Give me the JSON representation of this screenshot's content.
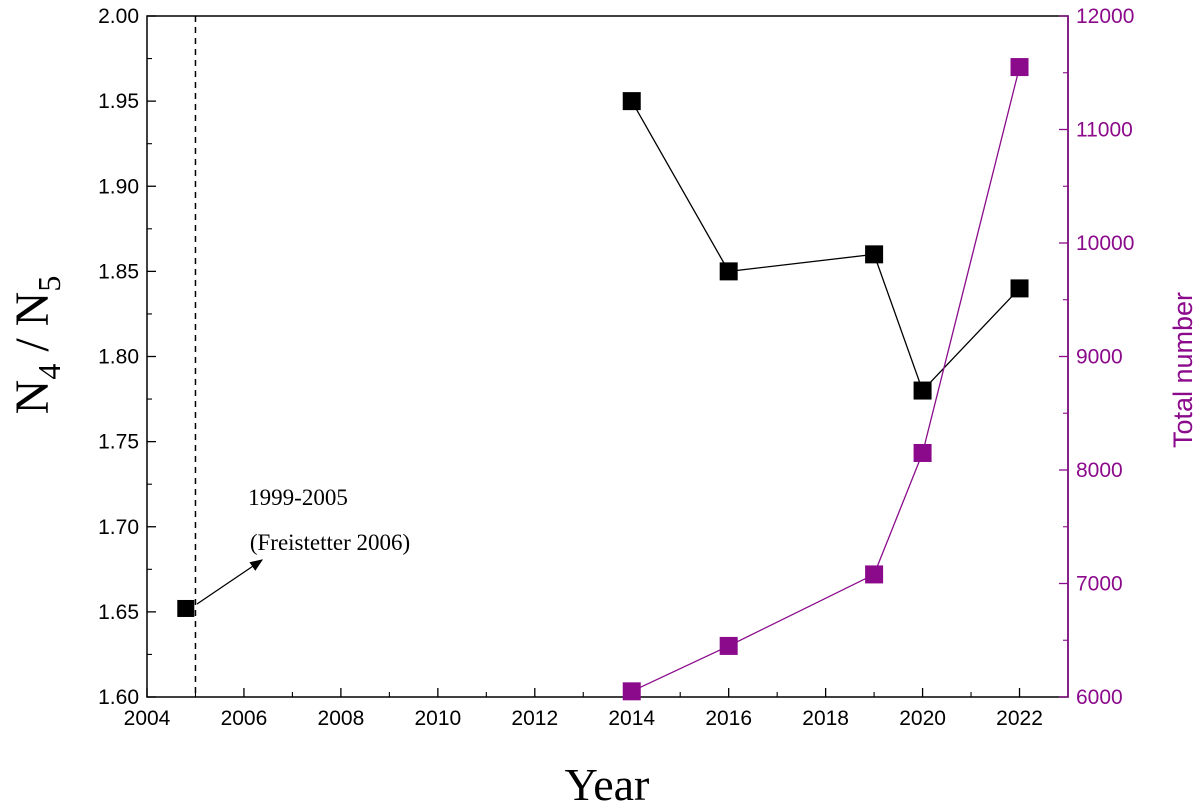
{
  "chart_data": {
    "type": "line",
    "xlabel": "Year",
    "ylabel_left": {
      "base": "N",
      "sub1": "4",
      "sep": " / ",
      "base2": "N",
      "sub2": "5"
    },
    "ylabel_right": "Total number",
    "xlim": [
      2004,
      2023
    ],
    "ylim_left": [
      1.6,
      2.0
    ],
    "ylim_right": [
      6000,
      12000
    ],
    "xticks": [
      "2004",
      "2006",
      "2008",
      "2010",
      "2012",
      "2014",
      "2016",
      "2018",
      "2020",
      "2022"
    ],
    "yticks_left": [
      "1.60",
      "1.65",
      "1.70",
      "1.75",
      "1.80",
      "1.85",
      "1.90",
      "1.95",
      "2.00"
    ],
    "yticks_right": [
      "6000",
      "7000",
      "8000",
      "9000",
      "10000",
      "11000",
      "12000"
    ],
    "colors": {
      "left_axis": "#000000",
      "right_axis": "#8b0a8b"
    },
    "series": [
      {
        "axis": "left",
        "color": "#000000",
        "x": [
          2014,
          2016,
          2019,
          2020,
          2022
        ],
        "y": [
          1.95,
          1.85,
          1.86,
          1.78,
          1.84
        ]
      },
      {
        "axis": "right",
        "color": "#8b0a8b",
        "x": [
          2014,
          2016,
          2019,
          2020,
          2022
        ],
        "y": [
          6050,
          6450,
          7080,
          8150,
          11550
        ]
      }
    ],
    "reference_point": {
      "x": 2004.8,
      "y": 1.652
    },
    "reference_line_x": 2005,
    "annotation": {
      "line1": "1999-2005",
      "line2": "(Freistetter 2006)"
    }
  }
}
